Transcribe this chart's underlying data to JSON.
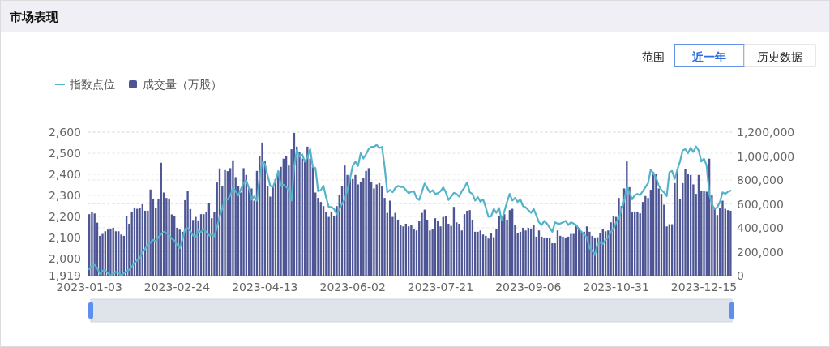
{
  "chart_data": {
    "type": "bar",
    "title": "市场表现",
    "legend": "top left",
    "grid": true,
    "annotations": [
      "范围",
      "近一年",
      "历史数据"
    ],
    "categories": [
      "2023-01-03",
      null,
      null,
      null,
      null,
      null,
      null,
      null,
      null,
      null,
      null,
      null,
      null,
      null,
      null,
      null,
      null,
      null,
      null,
      null,
      null,
      null,
      null,
      null,
      null,
      null,
      null,
      null,
      null,
      null,
      null,
      null,
      null,
      "2023-02-24",
      null,
      null,
      null,
      null,
      null,
      null,
      null,
      null,
      null,
      null,
      null,
      null,
      null,
      null,
      null,
      null,
      null,
      null,
      null,
      null,
      null,
      null,
      null,
      null,
      null,
      null,
      null,
      null,
      null,
      null,
      null,
      null,
      "2023-04-13",
      null,
      null,
      null,
      null,
      null,
      null,
      null,
      null,
      null,
      null,
      null,
      null,
      null,
      null,
      null,
      null,
      null,
      null,
      null,
      null,
      null,
      null,
      null,
      null,
      null,
      null,
      null,
      null,
      null,
      null,
      null,
      null,
      "2023-06-02",
      null,
      null,
      null,
      null,
      null,
      null,
      null,
      null,
      null,
      null,
      null,
      null,
      null,
      null,
      null,
      null,
      null,
      null,
      null,
      null,
      null,
      null,
      null,
      null,
      null,
      null,
      null,
      null,
      null,
      null,
      null,
      null,
      "2023-07-21",
      null,
      null,
      null,
      null,
      null,
      null,
      null,
      null,
      null,
      null,
      null,
      null,
      null,
      null,
      null,
      null,
      null,
      null,
      null,
      null,
      null,
      null,
      null,
      null,
      null,
      null,
      null,
      null,
      null,
      null,
      null,
      null,
      "2023-09-06",
      null,
      null,
      null,
      null,
      null,
      null,
      null,
      null,
      null,
      null,
      null,
      null,
      null,
      null,
      null,
      null,
      null,
      null,
      null,
      null,
      null,
      null,
      null,
      null,
      null,
      null,
      null,
      null,
      null,
      null,
      null,
      null,
      "2023-10-31",
      null,
      null,
      null,
      null,
      null,
      null,
      null,
      null,
      null,
      null,
      null,
      null,
      null,
      null,
      null,
      null,
      null,
      null,
      null,
      null,
      null,
      null,
      null,
      null,
      null,
      null,
      null,
      null,
      null,
      null,
      null,
      null,
      "2023-12-15",
      null,
      null,
      null,
      null,
      null,
      null,
      null,
      null,
      null,
      null
    ],
    "ylim": [
      1919,
      2600
    ],
    "yticks": [
      {
        "value": 1919,
        "label": "1,919"
      },
      {
        "value": 2000,
        "label": "2,000"
      },
      {
        "value": 2100,
        "label": "2,100"
      },
      {
        "value": 2200,
        "label": "2,200"
      },
      {
        "value": 2300,
        "label": "2,300"
      },
      {
        "value": 2400,
        "label": "2,400"
      },
      {
        "value": 2500,
        "label": "2,500"
      },
      {
        "value": 2600,
        "label": "2,600"
      }
    ],
    "y2lim": [
      0,
      1200000
    ],
    "y2ticks": [
      0,
      {
        "value": 200000,
        "label": "200,000"
      },
      {
        "value": 400000,
        "label": "400,000"
      },
      {
        "value": 600000,
        "label": "600,000"
      },
      {
        "value": 800000,
        "label": "800,000"
      },
      {
        "value": 1000000,
        "label": "1,000,000"
      },
      {
        "value": 1200000,
        "label": "1,200,000"
      }
    ],
    "series": [
      {
        "name": "指数点位",
        "type": "line",
        "color": "#55b3c9",
        "values": [
          1950,
          1967,
          1970,
          1954,
          1928,
          1943,
          1945,
          1931,
          1919,
          1927,
          1937,
          1934,
          1919,
          1931,
          1940,
          1947,
          1963,
          1979,
          1992,
          1999,
          2033,
          2046,
          2069,
          2076,
          2089,
          2082,
          2101,
          2117,
          2127,
          2121,
          2110,
          2095,
          2085,
          2065,
          2050,
          2090,
          2140,
          2145,
          2130,
          2110,
          2100,
          2135,
          2125,
          2140,
          2125,
          2110,
          2115,
          2105,
          2150,
          2200,
          2240,
          2285,
          2280,
          2300,
          2335,
          2320,
          2300,
          2330,
          2360,
          2370,
          2335,
          2280,
          2295,
          2275,
          2385,
          2460,
          2450,
          2395,
          2345,
          2340,
          2370,
          2415,
          2345,
          2350,
          2340,
          2325,
          2275,
          2435,
          2515,
          2485,
          2495,
          2460,
          2480,
          2520,
          2435,
          2430,
          2320,
          2325,
          2345,
          2290,
          2245,
          2245,
          2235,
          2210,
          2235,
          2260,
          2280,
          2325,
          2380,
          2440,
          2460,
          2440,
          2500,
          2475,
          2495,
          2520,
          2530,
          2530,
          2540,
          2525,
          2530,
          2435,
          2315,
          2325,
          2315,
          2335,
          2345,
          2340,
          2340,
          2325,
          2310,
          2317,
          2320,
          2288,
          2278,
          2317,
          2356,
          2335,
          2314,
          2324,
          2307,
          2310,
          2320,
          2338,
          2314,
          2278,
          2294,
          2312,
          2307,
          2294,
          2320,
          2337,
          2362,
          2314,
          2307,
          2275,
          2292,
          2269,
          2281,
          2243,
          2198,
          2200,
          2236,
          2217,
          2240,
          2181,
          2224,
          2269,
          2307,
          2275,
          2288,
          2269,
          2281,
          2249,
          2243,
          2230,
          2217,
          2236,
          2204,
          2172,
          2159,
          2179,
          2166,
          2146,
          2127,
          2172,
          2166,
          2166,
          2172,
          2179,
          2159,
          2172,
          2166,
          2159,
          2140,
          2127,
          2114,
          2101,
          2050,
          2037,
          2018,
          2069,
          2076,
          2069,
          2089,
          2101,
          2127,
          2140,
          2172,
          2191,
          2230,
          2275,
          2339,
          2314,
          2281,
          2301,
          2307,
          2301,
          2320,
          2339,
          2358,
          2423,
          2403,
          2384,
          2346,
          2326,
          2314,
          2297,
          2410,
          2416,
          2378,
          2423,
          2461,
          2513,
          2519,
          2500,
          2526,
          2506,
          2532,
          2513,
          2461,
          2474,
          2442,
          2307,
          2256,
          2236,
          2243,
          2269,
          2314,
          2307,
          2317,
          2322
        ]
      },
      {
        "name": "成交量（万股）",
        "axis": "y2",
        "color": "#4d5595",
        "values": [
          514000,
          530000,
          520000,
          443000,
          333000,
          349000,
          371000,
          385000,
          394000,
          400000,
          371000,
          371000,
          344000,
          333000,
          502000,
          434000,
          536000,
          570000,
          559000,
          563000,
          597000,
          543000,
          543000,
          720000,
          643000,
          563000,
          638000,
          944000,
          695000,
          650000,
          645000,
          512000,
          502000,
          400000,
          385000,
          367000,
          631000,
          711000,
          557000,
          466000,
          491000,
          462000,
          514000,
          514000,
          532000,
          604000,
          480000,
          532000,
          779000,
          897000,
          752000,
          883000,
          874000,
          899000,
          964000,
          824000,
          752000,
          695000,
          899000,
          842000,
          740000,
          729000,
          627000,
          876000,
          1000000,
          1113000,
          955000,
          752000,
          661000,
          752000,
          808000,
          876000,
          910000,
          978000,
          1000000,
          921000,
          1057000,
          1193000,
          1079000,
          1035000,
          978000,
          966000,
          1079000,
          978000,
          910000,
          695000,
          650000,
          616000,
          582000,
          536000,
          491000,
          536000,
          502000,
          582000,
          672000,
          752000,
          921000,
          842000,
          819000,
          808000,
          842000,
          763000,
          785000,
          819000,
          876000,
          899000,
          785000,
          729000,
          763000,
          774000,
          752000,
          650000,
          525000,
          627000,
          491000,
          525000,
          468000,
          423000,
          412000,
          434000,
          412000,
          423000,
          389000,
          378000,
          457000,
          525000,
          552000,
          468000,
          378000,
          389000,
          480000,
          457000,
          412000,
          491000,
          498000,
          434000,
          416000,
          575000,
          446000,
          434000,
          378000,
          514000,
          543000,
          548000,
          468000,
          367000,
          367000,
          378000,
          344000,
          333000,
          310000,
          355000,
          321000,
          389000,
          502000,
          491000,
          514000,
          468000,
          548000,
          559000,
          423000,
          355000,
          367000,
          400000,
          378000,
          400000,
          394000,
          423000,
          326000,
          378000,
          326000,
          317000,
          317000,
          317000,
          271000,
          271000,
          378000,
          333000,
          326000,
          317000,
          326000,
          349000,
          349000,
          423000,
          400000,
          367000,
          367000,
          412000,
          367000,
          333000,
          317000,
          321000,
          355000,
          389000,
          371000,
          378000,
          446000,
          502000,
          491000,
          650000,
          582000,
          729000,
          955000,
          740000,
          536000,
          536000,
          536000,
          521000,
          616000,
          666000,
          650000,
          718000,
          865000,
          853000,
          729000,
          684000,
          593000,
          412000,
          430000,
          430000,
          774000,
          876000,
          638000,
          774000,
          892000,
          853000,
          842000,
          763000,
          684000,
          842000,
          711000,
          711000,
          702000,
          978000,
          672000,
          570000,
          507000,
          566000,
          627000,
          559000,
          548000,
          543000
        ]
      }
    ]
  }
}
